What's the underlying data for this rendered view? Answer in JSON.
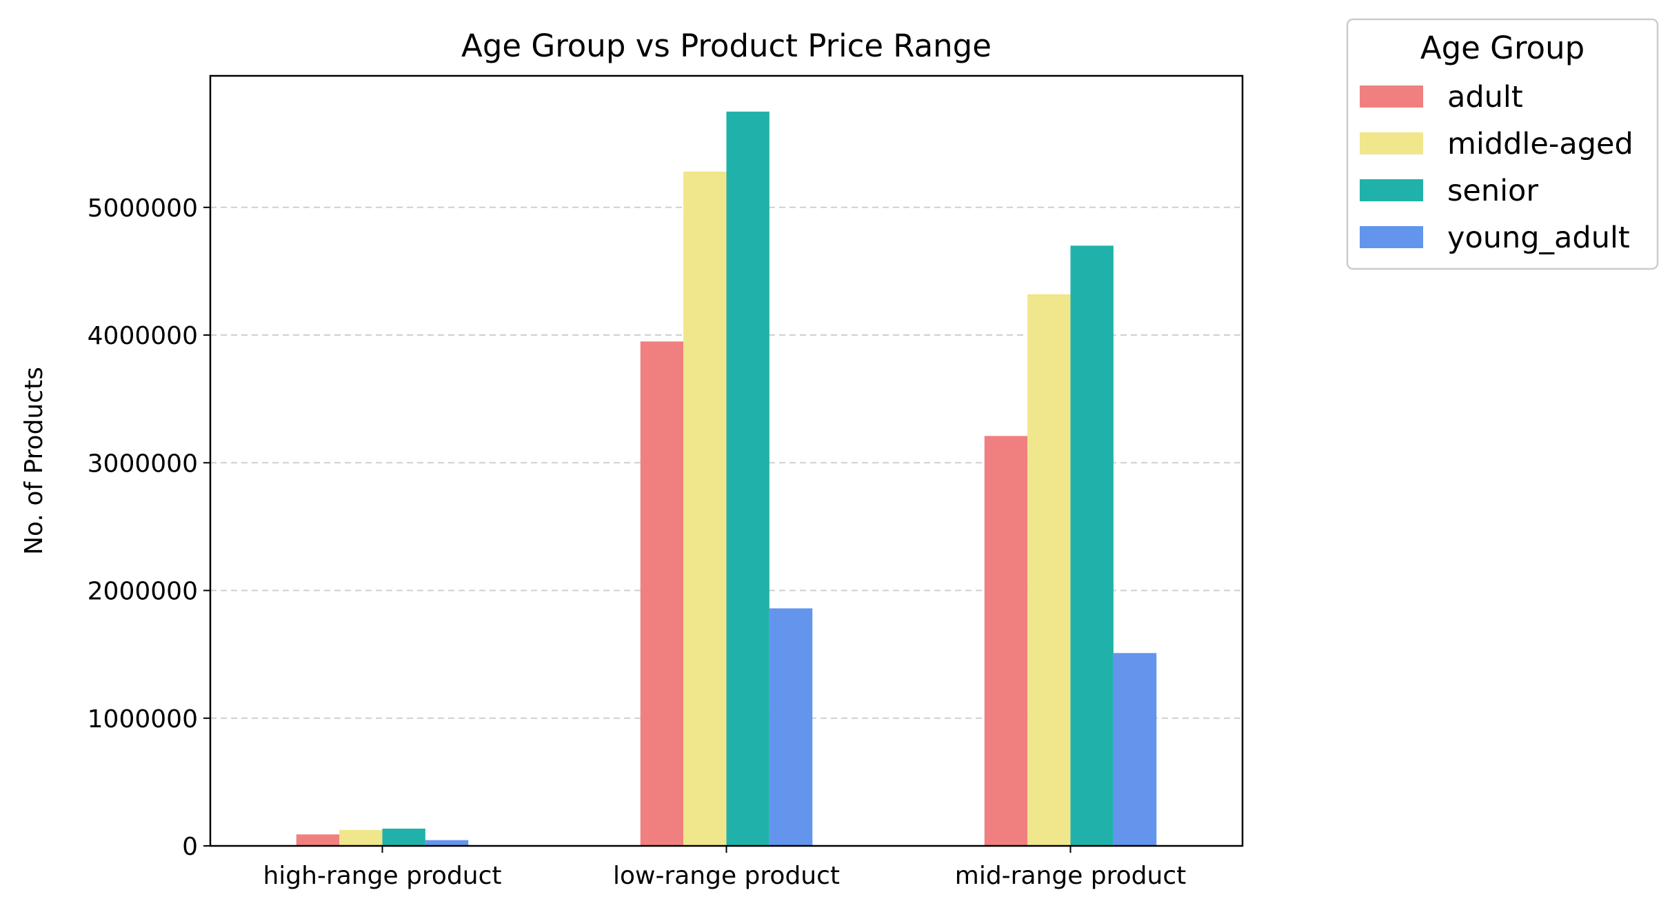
{
  "chart_data": {
    "type": "bar",
    "title": "Age Group vs Product Price Range",
    "xlabel": "",
    "ylabel": "No. of Products",
    "categories": [
      "high-range product",
      "low-range product",
      "mid-range product"
    ],
    "series": [
      {
        "name": "adult",
        "color": "#F08080",
        "values": [
          90000,
          3950000,
          3210000
        ]
      },
      {
        "name": "middle-aged",
        "color": "#F0E68C",
        "values": [
          125000,
          5280000,
          4320000
        ]
      },
      {
        "name": "senior",
        "color": "#20B2AA",
        "values": [
          135000,
          5750000,
          4700000
        ]
      },
      {
        "name": "young_adult",
        "color": "#6495ED",
        "values": [
          45000,
          1860000,
          1510000
        ]
      }
    ],
    "ylim": [
      0,
      6030000
    ],
    "yticks": [
      0,
      1000000,
      2000000,
      3000000,
      4000000,
      5000000
    ],
    "ytick_labels": [
      "0",
      "1000000",
      "2000000",
      "3000000",
      "4000000",
      "5000000"
    ],
    "grid": "y, dashed",
    "legend": {
      "title": "Age Group",
      "placement": "outside top-right"
    }
  }
}
